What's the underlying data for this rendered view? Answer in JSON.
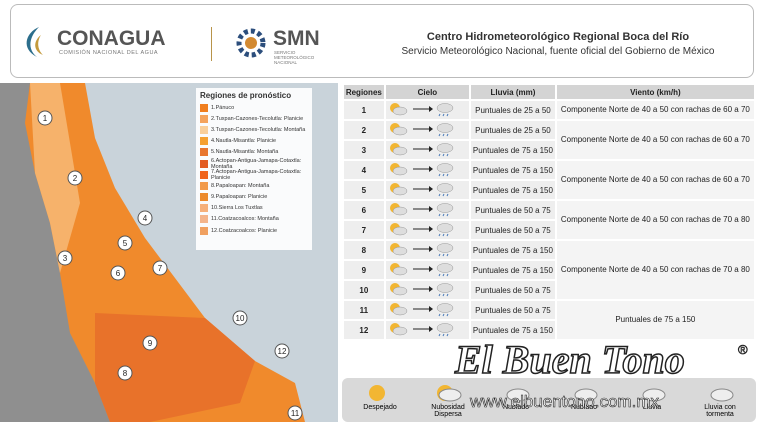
{
  "header": {
    "logo1": "CONAGUA",
    "logo1_sub": "COMISIÓN NACIONAL DEL AGUA",
    "logo2": "SMN",
    "logo2_sub": "SERVICIO METEOROLÓGICO NACIONAL",
    "title": "Centro Hidrometeorológico Regional Boca del Río",
    "subtitle": "Servicio Meteorológico Nacional, fuente oficial del Gobierno de México"
  },
  "legend": {
    "title": "Regiones de pronóstico",
    "items": [
      "1.Pánuco",
      "2.Tuxpan-Cazones-Tecolutla: Planicie",
      "3.Tuxpan-Cazones-Tecolutla: Montaña",
      "4.Nautla-Misantla: Planicie",
      "5.Nautla-Misantla: Montaña",
      "6.Actopan-Antigua-Jamapa-Cotaxtla: Montaña",
      "7.Actopan-Antigua-Jamapa-Cotaxtla: Planicie",
      "8.Papaloapan: Montaña",
      "9.Papaloapan: Planicie",
      "10.Sierra Los Tuxtlas",
      "11.Coatzacoalcos: Montaña",
      "12.Coatzacoalcos: Planicie"
    ]
  },
  "map": {
    "labels": [
      "1",
      "2",
      "3",
      "4",
      "5",
      "6",
      "7",
      "8",
      "9",
      "10",
      "11",
      "12"
    ]
  },
  "table": {
    "headers": [
      "Regiones",
      "Cielo",
      "Lluvia (mm)",
      "Viento (km/h)"
    ],
    "rows": [
      {
        "region": "1",
        "lluvia": "Puntuales de 25 a 50",
        "viento": "Componente Norte de 40 a 50 con rachas de 60 a 70"
      },
      {
        "region": "2",
        "lluvia": "Puntuales de 25 a 50",
        "viento": "Componente Norte de 40 a 50 con rachas de 60 a 70"
      },
      {
        "region": "3",
        "lluvia": "Puntuales de 75 a 150",
        "viento": null
      },
      {
        "region": "4",
        "lluvia": "Puntuales de 75 a 150",
        "viento": "Componente Norte de 40 a 50 con rachas de 60 a 70"
      },
      {
        "region": "5",
        "lluvia": "Puntuales de 75 a 150",
        "viento": null
      },
      {
        "region": "6",
        "lluvia": "Puntuales de 50 a 75",
        "viento": "Componente Norte de 40 a 50 con rachas de 70 a 80"
      },
      {
        "region": "7",
        "lluvia": "Puntuales de 50 a 75",
        "viento": null
      },
      {
        "region": "8",
        "lluvia": "Puntuales de 75 a 150",
        "viento": "Componente Norte de 40 a 50 con rachas de 70 a 80"
      },
      {
        "region": "9",
        "lluvia": "Puntuales de 75 a 150",
        "viento": null
      },
      {
        "region": "10",
        "lluvia": "Puntuales de 50 a 75",
        "viento": null
      },
      {
        "region": "11",
        "lluvia": "Puntuales de 50 a 75",
        "viento": "Puntuales de 75 a 150"
      },
      {
        "region": "12",
        "lluvia": "Puntuales de 75 a 150",
        "viento": null
      }
    ]
  },
  "key": [
    "Despejado",
    "Nubosidad Dispersa",
    "Nublado",
    "Nublado",
    "Lluvia",
    "Lluvia con tormenta"
  ],
  "watermark": {
    "brand": "El Buen Tono",
    "mark": "®",
    "url": "www.elbuentono.com.mx"
  }
}
